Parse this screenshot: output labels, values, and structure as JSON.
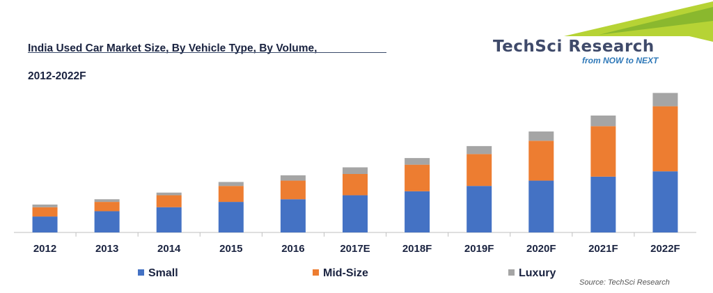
{
  "title_lines": [
    "India Used Car Market Size, By Vehicle Type, By Volume,",
    "2012-2022F"
  ],
  "logo": {
    "text": "TechSci Research",
    "tagline": "from NOW to NEXT"
  },
  "source": "Source: TechSci Research",
  "chart_data": {
    "type": "bar",
    "stacked": true,
    "title": "India Used Car Market Size, By Vehicle Type, By Volume, 2012-2022F",
    "categories": [
      "2012",
      "2013",
      "2014",
      "2015",
      "2016",
      "2017E",
      "2018F",
      "2019F",
      "2020F",
      "2021F",
      "2022F"
    ],
    "series": [
      {
        "name": "Small",
        "color": "#4472c4",
        "values": [
          12,
          16,
          19,
          23,
          25,
          28,
          31,
          35,
          39,
          42,
          46
        ]
      },
      {
        "name": "Mid-Size",
        "color": "#ed7d31",
        "values": [
          7,
          7,
          9,
          12,
          14,
          16,
          20,
          24,
          30,
          38,
          49
        ]
      },
      {
        "name": "Luxury",
        "color": "#a5a5a5",
        "values": [
          2,
          2,
          2,
          3,
          4,
          5,
          5,
          6,
          7,
          8,
          10
        ]
      }
    ],
    "ylim": [
      0,
      110
    ],
    "y_axis_shown": false,
    "grid": false,
    "legend_position": "bottom"
  }
}
